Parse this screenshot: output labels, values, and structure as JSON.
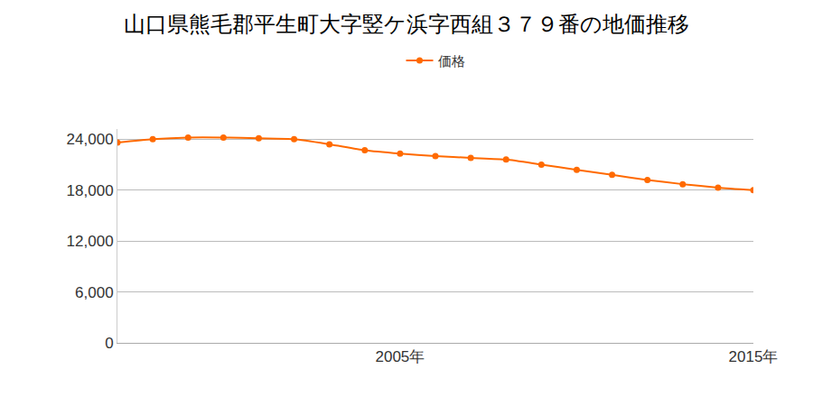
{
  "chart_data": {
    "type": "line",
    "title": "山口県熊毛郡平生町大字竪ケ浜字西組３７９番の地価推移",
    "x": [
      1997,
      1998,
      1999,
      2000,
      2001,
      2002,
      2003,
      2004,
      2005,
      2006,
      2007,
      2008,
      2009,
      2010,
      2011,
      2012,
      2013,
      2014,
      2015
    ],
    "series": [
      {
        "name": "価格",
        "color": "#ff6a00",
        "marker": "circle",
        "values": [
          23600,
          24000,
          24200,
          24200,
          24100,
          24000,
          23400,
          22700,
          22300,
          22000,
          21800,
          21600,
          21000,
          20400,
          19800,
          19200,
          18700,
          18300,
          18000
        ]
      }
    ],
    "xlim": [
      1997,
      2015
    ],
    "xticks": [
      {
        "value": 2005,
        "label": "2005年"
      },
      {
        "value": 2015,
        "label": "2015年"
      }
    ],
    "ylim": [
      0,
      25200
    ],
    "yticks": [
      0,
      {
        "value": 6000,
        "label": "6,000"
      },
      {
        "value": 12000,
        "label": "12,000"
      },
      {
        "value": 18000,
        "label": "18,000"
      },
      {
        "value": 24000,
        "label": "24,000"
      }
    ],
    "grid": true,
    "legend": "top"
  }
}
